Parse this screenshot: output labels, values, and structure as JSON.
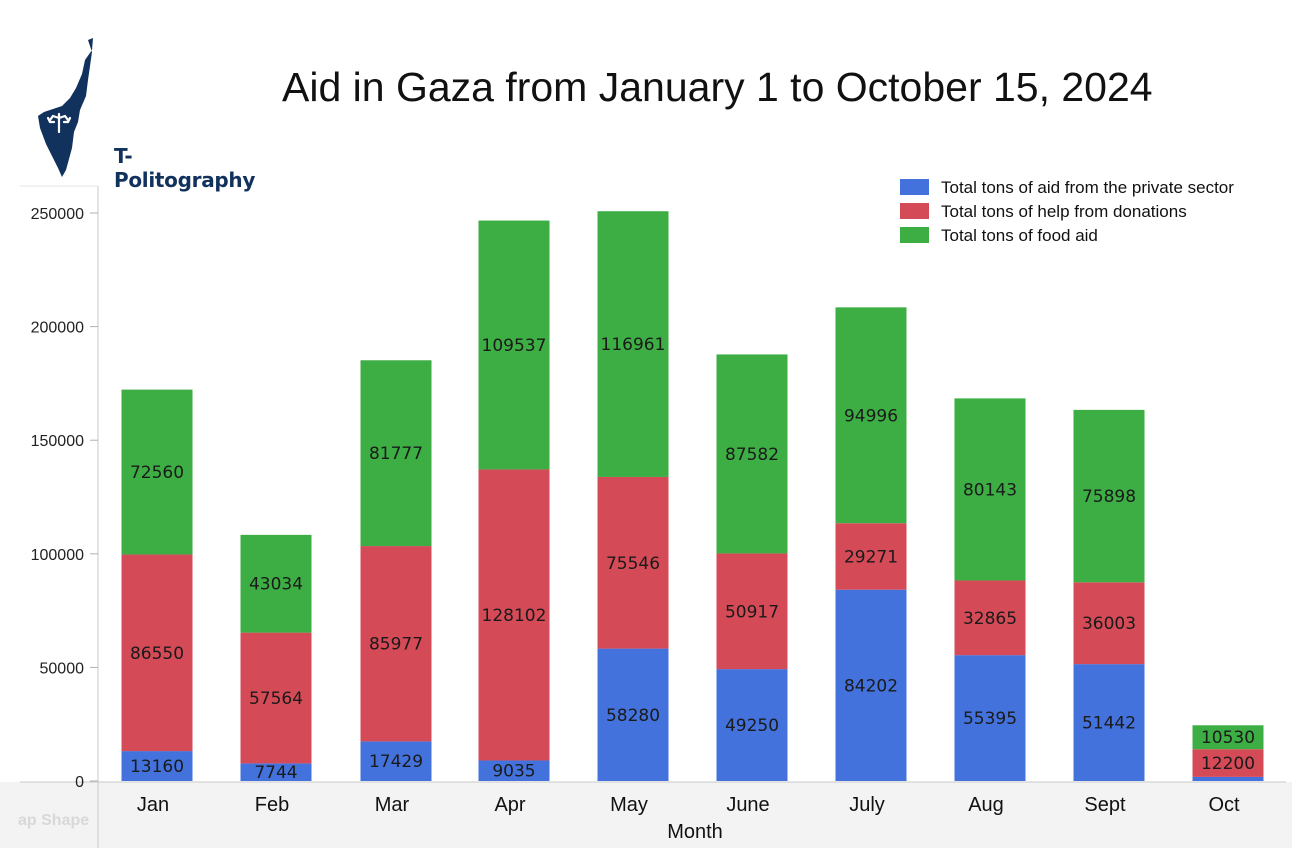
{
  "header": {
    "title": "Aid in Gaza from January 1 to October 15, 2024",
    "logo_text": "T-Politography",
    "watermark": "ap Shape"
  },
  "chart_data": {
    "type": "bar",
    "stacked": true,
    "title": "Aid in Gaza from January 1 to October 15, 2024",
    "xlabel": "Month",
    "ylabel": "",
    "ylim": [
      0,
      260000
    ],
    "yticks": [
      0,
      50000,
      100000,
      150000,
      200000,
      250000
    ],
    "grid": false,
    "legend_position": "top-right",
    "categories": [
      "Jan",
      "Feb",
      "Mar",
      "Apr",
      "May",
      "June",
      "July",
      "Aug",
      "Sept",
      "Oct"
    ],
    "series": [
      {
        "name": "Total tons of aid from the private sector",
        "color": "#4472dd",
        "values": [
          13160,
          7744,
          17429,
          9035,
          58280,
          49250,
          84202,
          55395,
          51442,
          1800
        ],
        "labels": [
          "13160",
          "7744",
          "17429",
          "9035",
          "58280",
          "49250",
          "84202",
          "55395",
          "51442",
          ""
        ]
      },
      {
        "name": "Total tons of help from donations",
        "color": "#d44a57",
        "values": [
          86550,
          57564,
          85977,
          128102,
          75546,
          50917,
          29271,
          32865,
          36003,
          12200
        ],
        "labels": [
          "86550",
          "57564",
          "85977",
          "128102",
          "75546",
          "50917",
          "29271",
          "32865",
          "36003",
          "12200"
        ]
      },
      {
        "name": "Total tons of food aid",
        "color": "#3dae44",
        "values": [
          72560,
          43034,
          81777,
          109537,
          116961,
          87582,
          94996,
          80143,
          75898,
          10530
        ],
        "labels": [
          "72560",
          "43034",
          "81777",
          "109537",
          "116961",
          "87582",
          "94996",
          "80143",
          "75898",
          "10530"
        ]
      }
    ]
  }
}
